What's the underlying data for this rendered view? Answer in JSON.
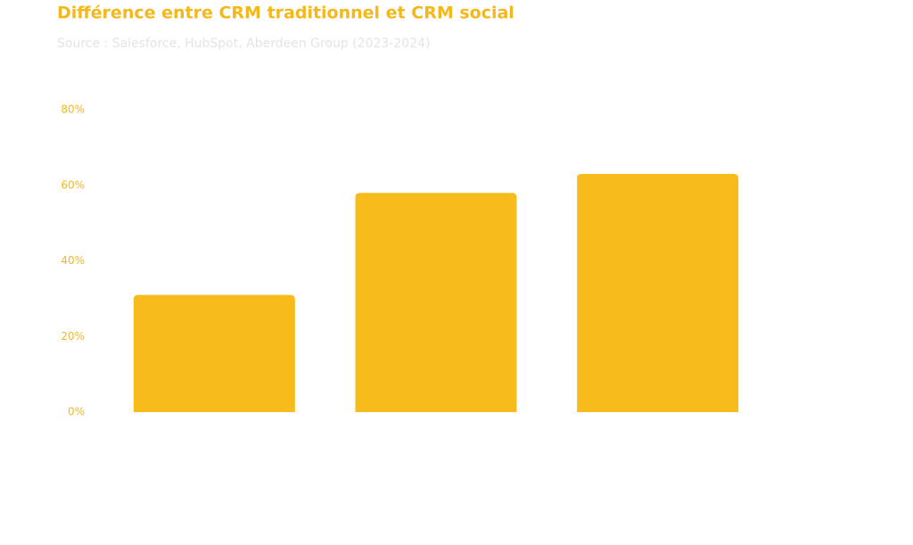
{
  "chart_data": {
    "type": "bar",
    "title": "Différence entre CRM traditionnel et CRM social",
    "subtitle": "Source : Salesforce, HubSpot, Aberdeen Group (2023-2024)",
    "categories": [
      null,
      null,
      null
    ],
    "values": [
      31,
      58,
      63
    ],
    "color": "#f7bc1c",
    "ylim": [
      0,
      80
    ],
    "yticks": [
      {
        "value": 0,
        "label": "0%"
      },
      {
        "value": 20,
        "label": "20%"
      },
      {
        "value": 40,
        "label": "40%"
      },
      {
        "value": 60,
        "label": "60%"
      },
      {
        "value": 80,
        "label": "80%"
      }
    ],
    "grid": false
  }
}
